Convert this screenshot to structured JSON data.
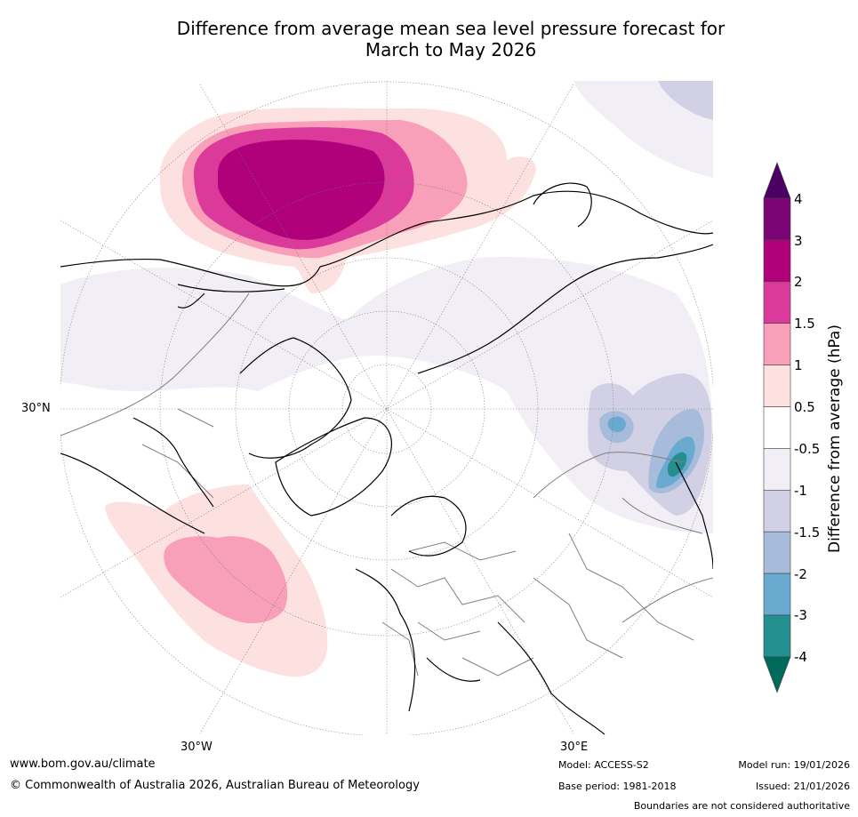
{
  "title": {
    "line1": "Difference from average mean sea level pressure forecast for",
    "line2": "March to May 2026"
  },
  "map": {
    "lat_label": "30°N",
    "lon_labels": [
      "30°W",
      "30°E"
    ]
  },
  "colorbar": {
    "title": "Difference from average (hPa)",
    "ticks": [
      "4",
      "3",
      "2",
      "1.5",
      "1",
      "0.5",
      "-0.5",
      "-1",
      "-1.5",
      "-2",
      "-3",
      "-4"
    ],
    "colors": [
      "#4b0064",
      "#7b0575",
      "#b0007a",
      "#dc3a9a",
      "#f8a0ba",
      "#fde0e0",
      "#ffffff",
      "#f2eef5",
      "#d2d0e4",
      "#a7bcda",
      "#6aaad0",
      "#23908f",
      "#006a5a"
    ]
  },
  "footer": {
    "website": "www.bom.gov.au/climate",
    "copyright": "© Commonwealth of Australia 2026, Australian Bureau of Meteorology",
    "model": "Model: ACCESS-S2",
    "base_period": "Base period: 1981-2018",
    "model_run": "Model run: 19/01/2026",
    "issued": "Issued: 21/01/2026",
    "disclaimer": "Boundaries are not considered authoritative"
  }
}
